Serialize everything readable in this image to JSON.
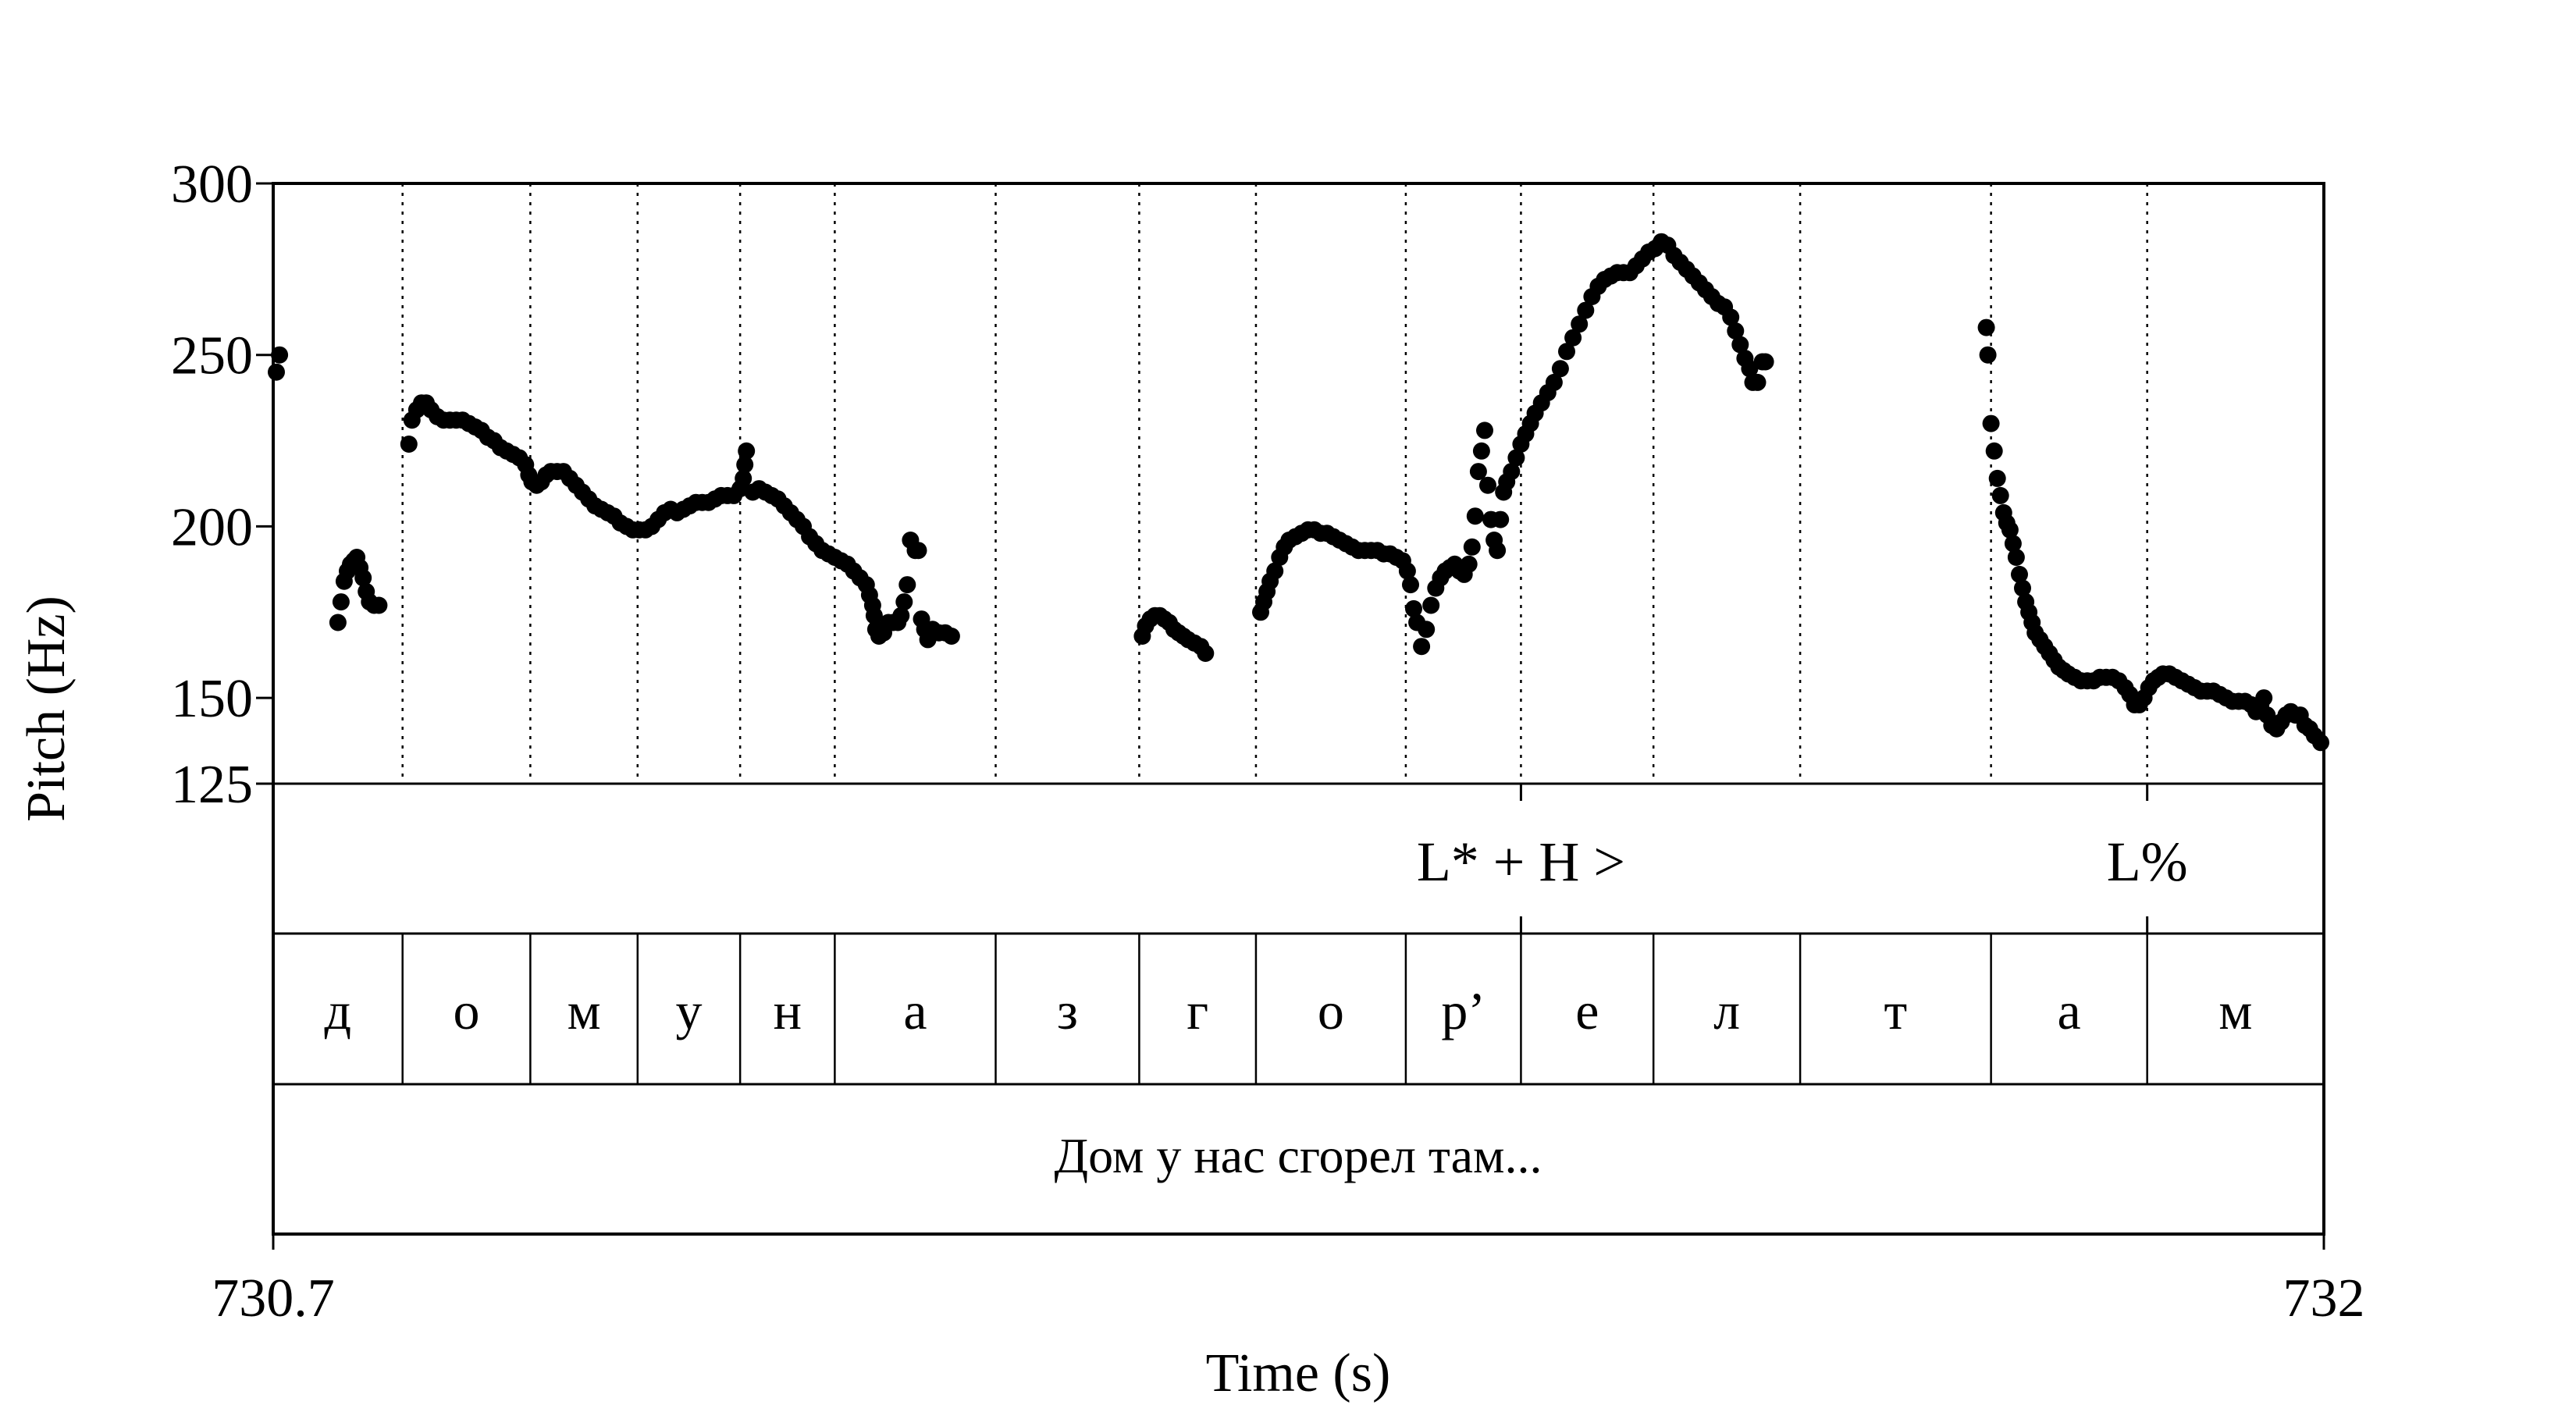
{
  "chart_data": {
    "type": "scatter",
    "xlabel": "Time (s)",
    "ylabel": "Pitch (Hz)",
    "xlim": [
      730.7,
      732
    ],
    "ylim": [
      125,
      300
    ],
    "x_ticks": [
      "730.7",
      "732"
    ],
    "y_ticks": [
      {
        "value": 300,
        "label": "300"
      },
      {
        "value": 250,
        "label": "250"
      },
      {
        "value": 200,
        "label": "200"
      },
      {
        "value": 150,
        "label": "150"
      },
      {
        "value": 125,
        "label": "125"
      }
    ],
    "segment_boundaries": [
      730.7,
      730.782,
      730.863,
      730.931,
      730.996,
      731.056,
      731.158,
      731.249,
      731.323,
      731.418,
      731.491,
      731.575,
      731.668,
      731.789,
      731.888,
      732.0
    ],
    "segments": [
      "д",
      "о",
      "м",
      "у",
      "н",
      "а",
      "з",
      "г",
      "о",
      "р’",
      "е",
      "л",
      "т",
      "а",
      "м"
    ],
    "tones": [
      {
        "time": 731.491,
        "label": "L* + H >"
      },
      {
        "time": 731.888,
        "label": "L%"
      }
    ],
    "utterance": "Дом у нас сгорел там...",
    "series": [
      {
        "points": [
          [
            730.702,
            245
          ],
          [
            730.704,
            250
          ],
          [
            730.741,
            172
          ],
          [
            730.743,
            178
          ],
          [
            730.745,
            184
          ],
          [
            730.747,
            187
          ],
          [
            730.749,
            189
          ],
          [
            730.751,
            190
          ],
          [
            730.753,
            191
          ],
          [
            730.755,
            188
          ],
          [
            730.757,
            185
          ],
          [
            730.759,
            181
          ],
          [
            730.761,
            178
          ],
          [
            730.764,
            177
          ],
          [
            730.767,
            177
          ],
          [
            730.786,
            224
          ],
          [
            730.788,
            231
          ],
          [
            730.791,
            234
          ],
          [
            730.794,
            236
          ],
          [
            730.797,
            236
          ],
          [
            730.8,
            234
          ],
          [
            730.804,
            232
          ],
          [
            730.808,
            231
          ],
          [
            730.812,
            231
          ],
          [
            730.816,
            231
          ],
          [
            730.82,
            231
          ],
          [
            730.824,
            230
          ],
          [
            730.828,
            229
          ],
          [
            730.832,
            228
          ],
          [
            730.836,
            226
          ],
          [
            730.84,
            225
          ],
          [
            730.844,
            223
          ],
          [
            730.848,
            222
          ],
          [
            730.852,
            221
          ],
          [
            730.856,
            220
          ],
          [
            730.86,
            218
          ],
          [
            730.862,
            215
          ],
          [
            730.864,
            213
          ],
          [
            730.867,
            212
          ],
          [
            730.87,
            213
          ],
          [
            730.873,
            215
          ],
          [
            730.876,
            216
          ],
          [
            730.88,
            216
          ],
          [
            730.884,
            216
          ],
          [
            730.888,
            214
          ],
          [
            730.892,
            212
          ],
          [
            730.896,
            210
          ],
          [
            730.9,
            208
          ],
          [
            730.904,
            206
          ],
          [
            730.908,
            205
          ],
          [
            730.912,
            204
          ],
          [
            730.916,
            203
          ],
          [
            730.92,
            201
          ],
          [
            730.924,
            200
          ],
          [
            730.928,
            199
          ],
          [
            730.932,
            199
          ],
          [
            730.936,
            199
          ],
          [
            730.94,
            200
          ],
          [
            730.944,
            202
          ],
          [
            730.948,
            204
          ],
          [
            730.952,
            205
          ],
          [
            730.956,
            204
          ],
          [
            730.96,
            205
          ],
          [
            730.964,
            206
          ],
          [
            730.968,
            207
          ],
          [
            730.972,
            207
          ],
          [
            730.976,
            207
          ],
          [
            730.98,
            208
          ],
          [
            730.984,
            209
          ],
          [
            730.988,
            209
          ],
          [
            730.992,
            209
          ],
          [
            730.996,
            211
          ],
          [
            730.998,
            214
          ],
          [
            730.999,
            218
          ],
          [
            731.0,
            222
          ],
          [
            731.004,
            210
          ],
          [
            731.008,
            211
          ],
          [
            731.012,
            210
          ],
          [
            731.016,
            209
          ],
          [
            731.02,
            208
          ],
          [
            731.024,
            206
          ],
          [
            731.028,
            204
          ],
          [
            731.032,
            202
          ],
          [
            731.036,
            200
          ],
          [
            731.04,
            197
          ],
          [
            731.044,
            195
          ],
          [
            731.048,
            193
          ],
          [
            731.052,
            192
          ],
          [
            731.056,
            191
          ],
          [
            731.06,
            190
          ],
          [
            731.064,
            189
          ],
          [
            731.068,
            187
          ],
          [
            731.072,
            185
          ],
          [
            731.076,
            183
          ],
          [
            731.078,
            180
          ],
          [
            731.08,
            177
          ],
          [
            731.081,
            174
          ],
          [
            731.082,
            170
          ],
          [
            731.084,
            168
          ],
          [
            731.087,
            169
          ],
          [
            731.09,
            172
          ],
          [
            731.093,
            172
          ],
          [
            731.096,
            172
          ],
          [
            731.098,
            174
          ],
          [
            731.1,
            178
          ],
          [
            731.102,
            183
          ],
          [
            731.104,
            196
          ],
          [
            731.107,
            193
          ],
          [
            731.109,
            193
          ],
          [
            731.111,
            173
          ],
          [
            731.113,
            170
          ],
          [
            731.115,
            167
          ],
          [
            731.118,
            170
          ],
          [
            731.122,
            169
          ],
          [
            731.126,
            169
          ],
          [
            731.13,
            168
          ],
          [
            731.251,
            168
          ],
          [
            731.253,
            171
          ],
          [
            731.256,
            173
          ],
          [
            731.259,
            174
          ],
          [
            731.262,
            174
          ],
          [
            731.265,
            173
          ],
          [
            731.268,
            172
          ],
          [
            731.271,
            170
          ],
          [
            731.274,
            169
          ],
          [
            731.277,
            168
          ],
          [
            731.28,
            167
          ],
          [
            731.284,
            166
          ],
          [
            731.288,
            165
          ],
          [
            731.291,
            163
          ],
          [
            731.326,
            175
          ],
          [
            731.328,
            178
          ],
          [
            731.33,
            181
          ],
          [
            731.332,
            184
          ],
          [
            731.335,
            187
          ],
          [
            731.338,
            191
          ],
          [
            731.341,
            194
          ],
          [
            731.344,
            196
          ],
          [
            731.348,
            197
          ],
          [
            731.352,
            198
          ],
          [
            731.356,
            199
          ],
          [
            731.36,
            199
          ],
          [
            731.364,
            198
          ],
          [
            731.368,
            198
          ],
          [
            731.372,
            197
          ],
          [
            731.376,
            196
          ],
          [
            731.38,
            195
          ],
          [
            731.384,
            194
          ],
          [
            731.388,
            193
          ],
          [
            731.392,
            193
          ],
          [
            731.396,
            193
          ],
          [
            731.4,
            193
          ],
          [
            731.404,
            192
          ],
          [
            731.408,
            192
          ],
          [
            731.412,
            191
          ],
          [
            731.416,
            190
          ],
          [
            731.419,
            187
          ],
          [
            731.421,
            183
          ],
          [
            731.423,
            176
          ],
          [
            731.425,
            172
          ],
          [
            731.428,
            165
          ],
          [
            731.431,
            170
          ],
          [
            731.434,
            177
          ],
          [
            731.437,
            182
          ],
          [
            731.44,
            185
          ],
          [
            731.443,
            187
          ],
          [
            731.446,
            188
          ],
          [
            731.449,
            189
          ],
          [
            731.452,
            187
          ],
          [
            731.455,
            186
          ],
          [
            731.458,
            189
          ],
          [
            731.46,
            194
          ],
          [
            731.462,
            203
          ],
          [
            731.464,
            216
          ],
          [
            731.466,
            222
          ],
          [
            731.468,
            228
          ],
          [
            731.47,
            212
          ],
          [
            731.472,
            202
          ],
          [
            731.474,
            196
          ],
          [
            731.476,
            193
          ],
          [
            731.478,
            202
          ],
          [
            731.48,
            210
          ],
          [
            731.482,
            213
          ],
          [
            731.485,
            216
          ],
          [
            731.488,
            220
          ],
          [
            731.491,
            224
          ],
          [
            731.494,
            227
          ],
          [
            731.497,
            230
          ],
          [
            731.5,
            233
          ],
          [
            731.504,
            236
          ],
          [
            731.508,
            239
          ],
          [
            731.512,
            242
          ],
          [
            731.516,
            246
          ],
          [
            731.52,
            251
          ],
          [
            731.524,
            255
          ],
          [
            731.528,
            259
          ],
          [
            731.532,
            263
          ],
          [
            731.536,
            267
          ],
          [
            731.54,
            270
          ],
          [
            731.544,
            272
          ],
          [
            731.548,
            273
          ],
          [
            731.552,
            274
          ],
          [
            731.556,
            274
          ],
          [
            731.56,
            274
          ],
          [
            731.564,
            276
          ],
          [
            731.568,
            278
          ],
          [
            731.572,
            280
          ],
          [
            731.576,
            281
          ],
          [
            731.58,
            283
          ],
          [
            731.584,
            282
          ],
          [
            731.588,
            279
          ],
          [
            731.592,
            277
          ],
          [
            731.596,
            275
          ],
          [
            731.6,
            273
          ],
          [
            731.604,
            271
          ],
          [
            731.608,
            269
          ],
          [
            731.612,
            267
          ],
          [
            731.616,
            265
          ],
          [
            731.62,
            264
          ],
          [
            731.624,
            261
          ],
          [
            731.627,
            257
          ],
          [
            731.63,
            253
          ],
          [
            731.633,
            249
          ],
          [
            731.636,
            246
          ],
          [
            731.638,
            242
          ],
          [
            731.641,
            242
          ],
          [
            731.644,
            248
          ],
          [
            731.646,
            248
          ],
          [
            731.786,
            258
          ],
          [
            731.787,
            250
          ],
          [
            731.789,
            230
          ],
          [
            731.791,
            222
          ],
          [
            731.793,
            214
          ],
          [
            731.795,
            209
          ],
          [
            731.797,
            204
          ],
          [
            731.799,
            201
          ],
          [
            731.801,
            199
          ],
          [
            731.803,
            195
          ],
          [
            731.805,
            191
          ],
          [
            731.807,
            186
          ],
          [
            731.809,
            182
          ],
          [
            731.811,
            178
          ],
          [
            731.813,
            175
          ],
          [
            731.815,
            172
          ],
          [
            731.817,
            169
          ],
          [
            731.82,
            167
          ],
          [
            731.823,
            165
          ],
          [
            731.826,
            163
          ],
          [
            731.829,
            161
          ],
          [
            731.832,
            159
          ],
          [
            731.835,
            158
          ],
          [
            731.838,
            157
          ],
          [
            731.842,
            156
          ],
          [
            731.846,
            155
          ],
          [
            731.85,
            155
          ],
          [
            731.854,
            155
          ],
          [
            731.858,
            156
          ],
          [
            731.862,
            156
          ],
          [
            731.866,
            156
          ],
          [
            731.87,
            155
          ],
          [
            731.874,
            153
          ],
          [
            731.877,
            151
          ],
          [
            731.88,
            148
          ],
          [
            731.883,
            148
          ],
          [
            731.886,
            150
          ],
          [
            731.889,
            153
          ],
          [
            731.892,
            155
          ],
          [
            731.895,
            156
          ],
          [
            731.898,
            157
          ],
          [
            731.902,
            157
          ],
          [
            731.906,
            156
          ],
          [
            731.91,
            155
          ],
          [
            731.914,
            154
          ],
          [
            731.918,
            153
          ],
          [
            731.922,
            152
          ],
          [
            731.926,
            152
          ],
          [
            731.93,
            152
          ],
          [
            731.934,
            151
          ],
          [
            731.938,
            150
          ],
          [
            731.942,
            149
          ],
          [
            731.946,
            149
          ],
          [
            731.95,
            149
          ],
          [
            731.954,
            148
          ],
          [
            731.957,
            146
          ],
          [
            731.96,
            148
          ],
          [
            731.962,
            150
          ],
          [
            731.964,
            145
          ],
          [
            731.967,
            142
          ],
          [
            731.97,
            141
          ],
          [
            731.973,
            143
          ],
          [
            731.976,
            145
          ],
          [
            731.979,
            146
          ],
          [
            731.982,
            145
          ],
          [
            731.985,
            145
          ],
          [
            731.988,
            142
          ],
          [
            731.991,
            141
          ],
          [
            731.994,
            139
          ],
          [
            731.998,
            137
          ]
        ]
      }
    ]
  }
}
